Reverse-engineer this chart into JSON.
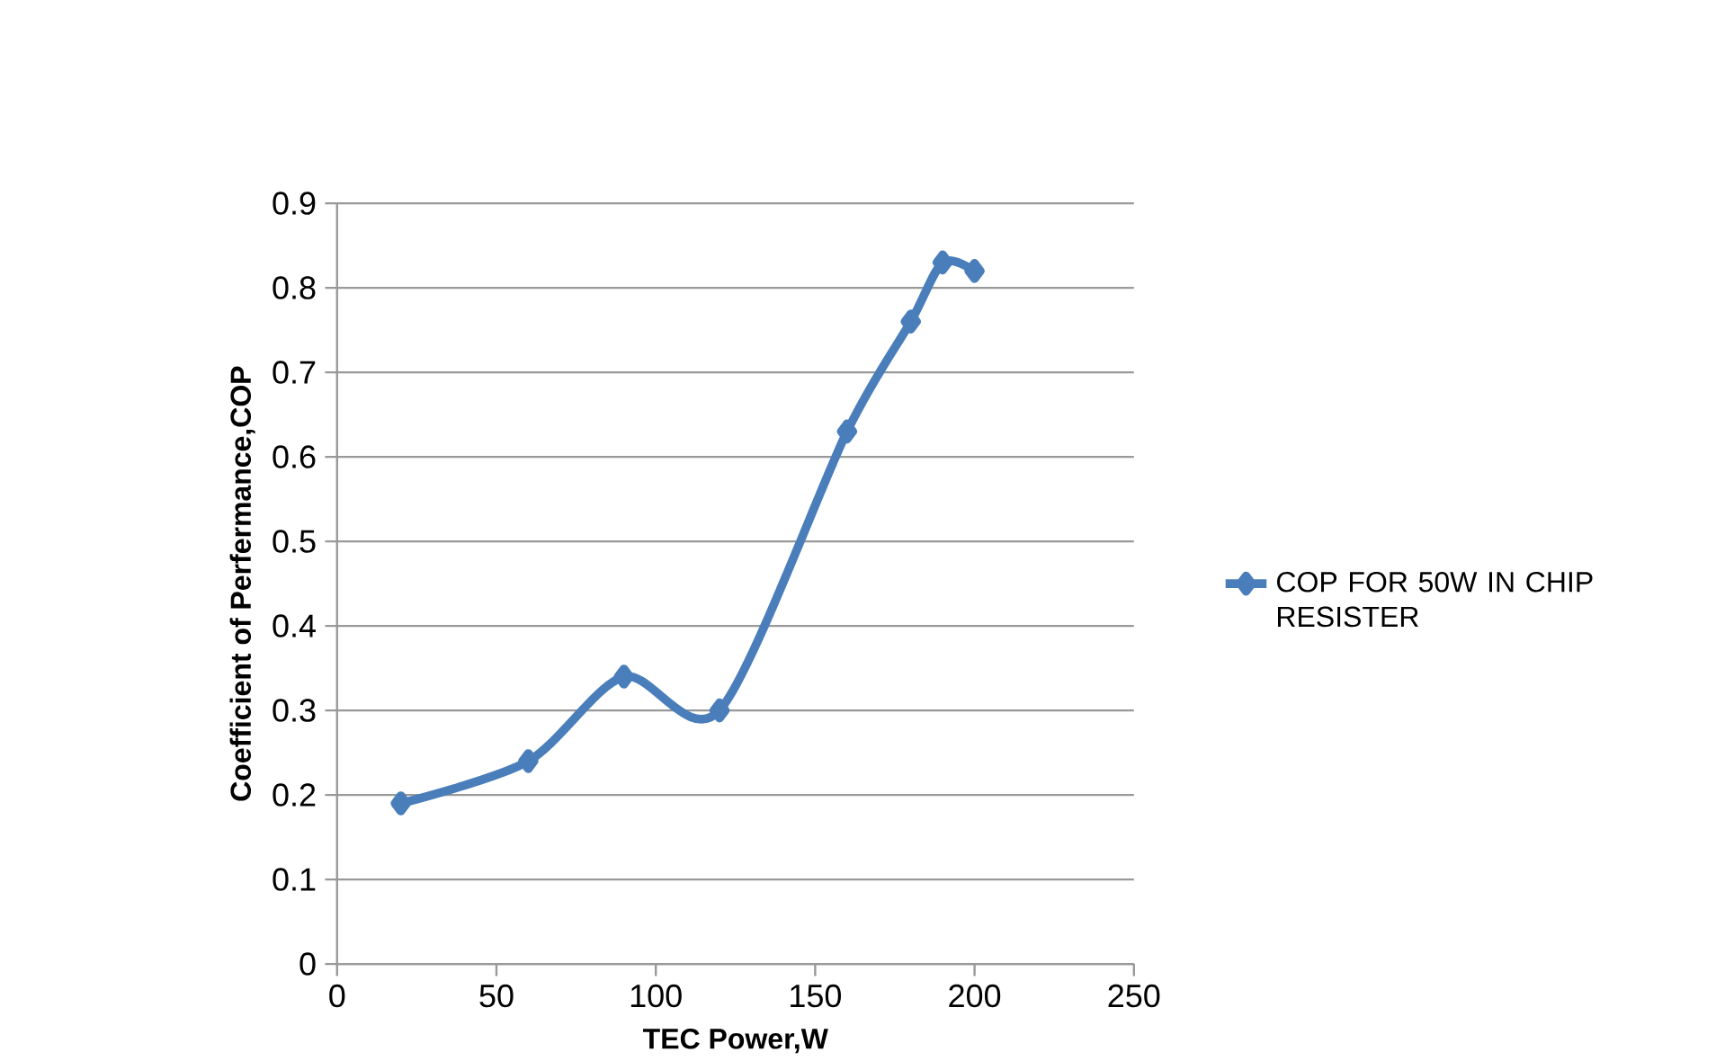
{
  "chart_data": {
    "type": "line",
    "xlabel": "TEC Power,W",
    "ylabel": "Coefficient of Perfermance,COP",
    "x": [
      20,
      60,
      90,
      120,
      160,
      180,
      190,
      200
    ],
    "series": [
      {
        "name": "COP FOR 50W IN CHIP RESISTER",
        "color": "#4a7ebb",
        "values": [
          0.19,
          0.24,
          0.34,
          0.3,
          0.63,
          0.76,
          0.83,
          0.82
        ]
      }
    ],
    "xlim": [
      0,
      250
    ],
    "xticks": [
      0,
      50,
      100,
      150,
      200,
      250
    ],
    "ylim": [
      0,
      0.9
    ],
    "yticks": [
      0,
      0.1,
      0.2,
      0.3,
      0.4,
      0.5,
      0.6,
      0.7,
      0.8,
      0.9
    ],
    "grid": "y",
    "legend": "right",
    "marker": "diamond",
    "line_style": "solid"
  }
}
